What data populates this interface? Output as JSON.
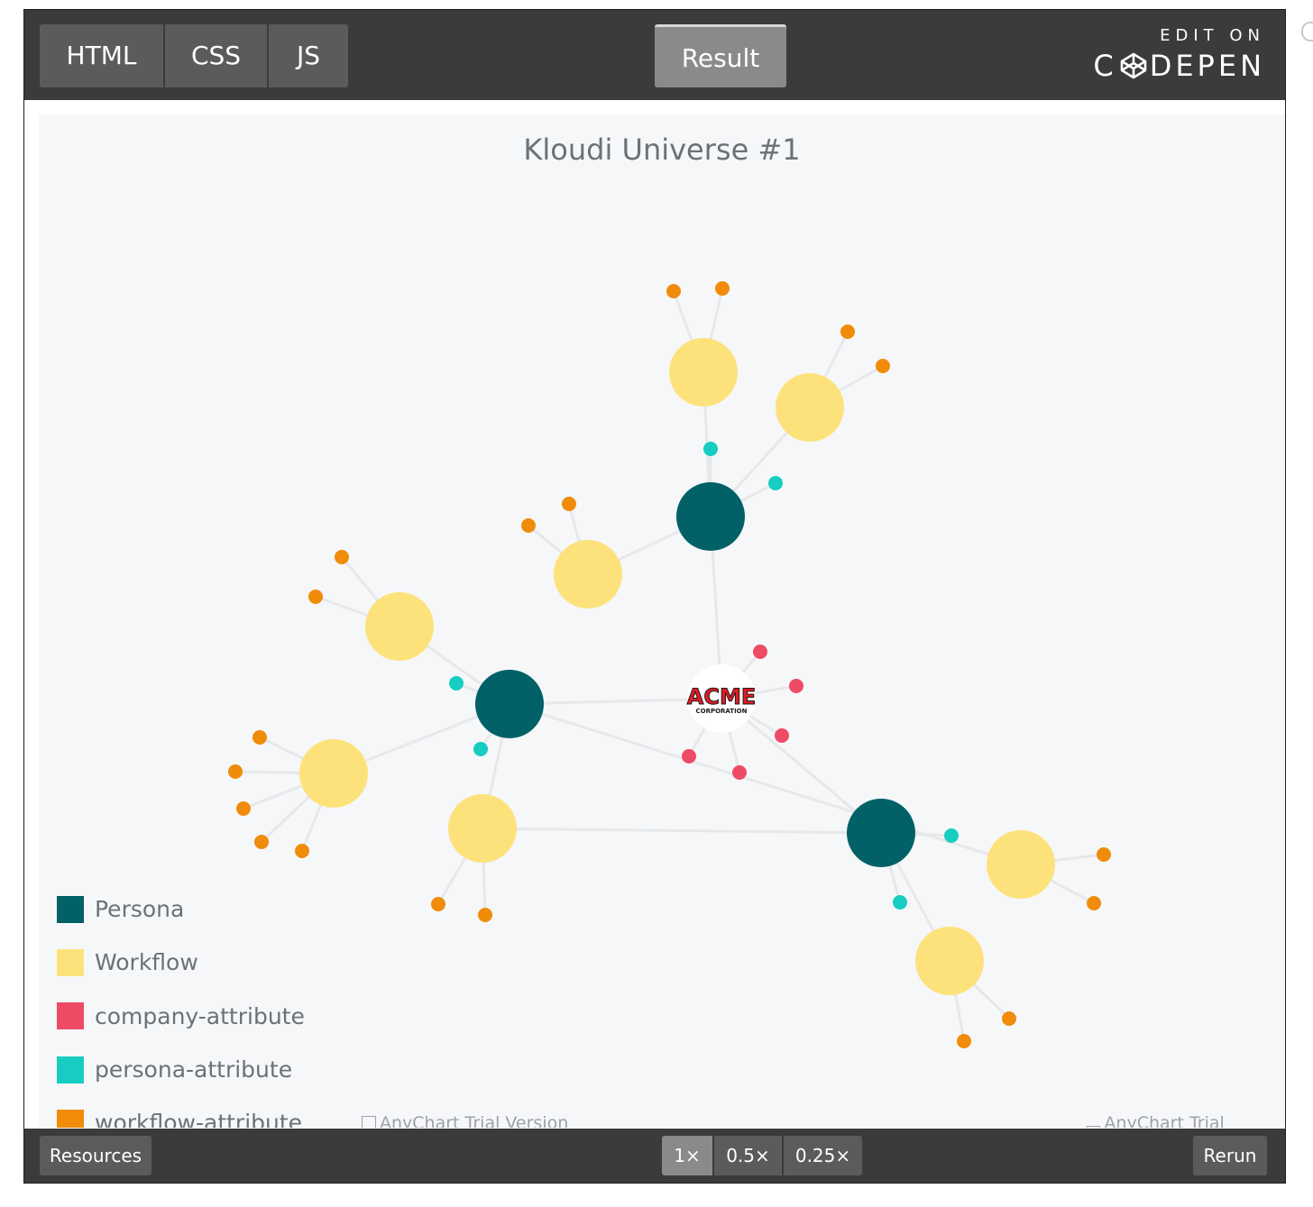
{
  "editor": {
    "tabs": [
      "HTML",
      "CSS",
      "JS"
    ],
    "result_tab": "Result",
    "brand_top": "EDIT ON",
    "brand_left": "C",
    "brand_right": "DEPEN"
  },
  "chart": {
    "title": "Kloudi Universe #1",
    "watermark": "AnyChart Trial Version",
    "center_logo_main": "ACME",
    "center_logo_sub": "CORPORATION"
  },
  "legend": [
    {
      "label": "Persona",
      "color": "#016167"
    },
    {
      "label": "Workflow",
      "color": "#fde27c"
    },
    {
      "label": "company-attribute",
      "color": "#ee4b66"
    },
    {
      "label": "persona-attribute",
      "color": "#17cdc2"
    },
    {
      "label": "workflow-attribute",
      "color": "#f08c0a"
    }
  ],
  "chart_data": {
    "type": "network",
    "title": "Kloudi Universe #1",
    "groups": [
      "Persona",
      "Workflow",
      "company-attribute",
      "persona-attribute",
      "workflow-attribute"
    ],
    "nodes": [
      {
        "id": "acme",
        "group": "center"
      },
      {
        "id": "p1",
        "group": "Persona"
      },
      {
        "id": "p2",
        "group": "Persona"
      },
      {
        "id": "p3",
        "group": "Persona"
      },
      {
        "id": "w1",
        "group": "Workflow"
      },
      {
        "id": "w2",
        "group": "Workflow"
      },
      {
        "id": "w3",
        "group": "Workflow"
      },
      {
        "id": "w4",
        "group": "Workflow"
      },
      {
        "id": "w5",
        "group": "Workflow"
      },
      {
        "id": "w6",
        "group": "Workflow"
      },
      {
        "id": "w7",
        "group": "Workflow"
      },
      {
        "id": "w8",
        "group": "Workflow"
      },
      {
        "id": "c1",
        "group": "company-attribute"
      },
      {
        "id": "c2",
        "group": "company-attribute"
      },
      {
        "id": "c3",
        "group": "company-attribute"
      },
      {
        "id": "c4",
        "group": "company-attribute"
      },
      {
        "id": "c5",
        "group": "company-attribute"
      },
      {
        "id": "pa1",
        "group": "persona-attribute"
      },
      {
        "id": "pa2",
        "group": "persona-attribute"
      },
      {
        "id": "pa3",
        "group": "persona-attribute"
      },
      {
        "id": "pa4",
        "group": "persona-attribute"
      },
      {
        "id": "pa5",
        "group": "persona-attribute"
      },
      {
        "id": "pa6",
        "group": "persona-attribute"
      },
      {
        "id": "wa1",
        "group": "workflow-attribute"
      },
      {
        "id": "wa2",
        "group": "workflow-attribute"
      },
      {
        "id": "wa3",
        "group": "workflow-attribute"
      },
      {
        "id": "wa4",
        "group": "workflow-attribute"
      },
      {
        "id": "wa5",
        "group": "workflow-attribute"
      },
      {
        "id": "wa6",
        "group": "workflow-attribute"
      },
      {
        "id": "wa7",
        "group": "workflow-attribute"
      },
      {
        "id": "wa8",
        "group": "workflow-attribute"
      },
      {
        "id": "wa9",
        "group": "workflow-attribute"
      },
      {
        "id": "wa10",
        "group": "workflow-attribute"
      },
      {
        "id": "wa11",
        "group": "workflow-attribute"
      },
      {
        "id": "wa12",
        "group": "workflow-attribute"
      },
      {
        "id": "wa13",
        "group": "workflow-attribute"
      },
      {
        "id": "wa14",
        "group": "workflow-attribute"
      },
      {
        "id": "wa15",
        "group": "workflow-attribute"
      },
      {
        "id": "wa16",
        "group": "workflow-attribute"
      },
      {
        "id": "wa17",
        "group": "workflow-attribute"
      },
      {
        "id": "wa18",
        "group": "workflow-attribute"
      },
      {
        "id": "wa19",
        "group": "workflow-attribute"
      }
    ],
    "edges": [
      [
        "acme",
        "p1"
      ],
      [
        "acme",
        "p2"
      ],
      [
        "acme",
        "p3"
      ],
      [
        "acme",
        "c1"
      ],
      [
        "acme",
        "c2"
      ],
      [
        "acme",
        "c3"
      ],
      [
        "acme",
        "c4"
      ],
      [
        "acme",
        "c5"
      ],
      [
        "p1",
        "w1"
      ],
      [
        "p1",
        "w2"
      ],
      [
        "p1",
        "w3"
      ],
      [
        "p1",
        "pa1"
      ],
      [
        "p1",
        "pa2"
      ],
      [
        "p2",
        "w4"
      ],
      [
        "p2",
        "w5"
      ],
      [
        "p2",
        "w6"
      ],
      [
        "p2",
        "w7"
      ],
      [
        "p2",
        "pa3"
      ],
      [
        "p2",
        "pa4"
      ],
      [
        "p3",
        "w8"
      ],
      [
        "p3",
        "w6"
      ],
      [
        "p3",
        "pa5"
      ],
      [
        "p3",
        "pa6"
      ],
      [
        "w1",
        "wa1"
      ],
      [
        "w1",
        "wa2"
      ],
      [
        "w2",
        "wa3"
      ],
      [
        "w2",
        "wa4"
      ],
      [
        "w3",
        "wa5"
      ],
      [
        "w3",
        "wa6"
      ],
      [
        "w4",
        "wa7"
      ],
      [
        "w4",
        "wa8"
      ],
      [
        "w5",
        "wa9"
      ],
      [
        "w5",
        "wa10"
      ],
      [
        "w5",
        "wa11"
      ],
      [
        "w5",
        "wa12"
      ],
      [
        "w5",
        "wa13"
      ],
      [
        "w6",
        "wa14"
      ],
      [
        "w6",
        "wa15"
      ],
      [
        "w7",
        "wa16"
      ],
      [
        "w7",
        "wa17"
      ],
      [
        "w8",
        "wa18"
      ],
      [
        "w8",
        "wa19"
      ]
    ]
  },
  "footer": {
    "resources": "Resources",
    "zoom_levels": [
      "1×",
      "0.5×",
      "0.25×"
    ],
    "rerun": "Rerun"
  }
}
